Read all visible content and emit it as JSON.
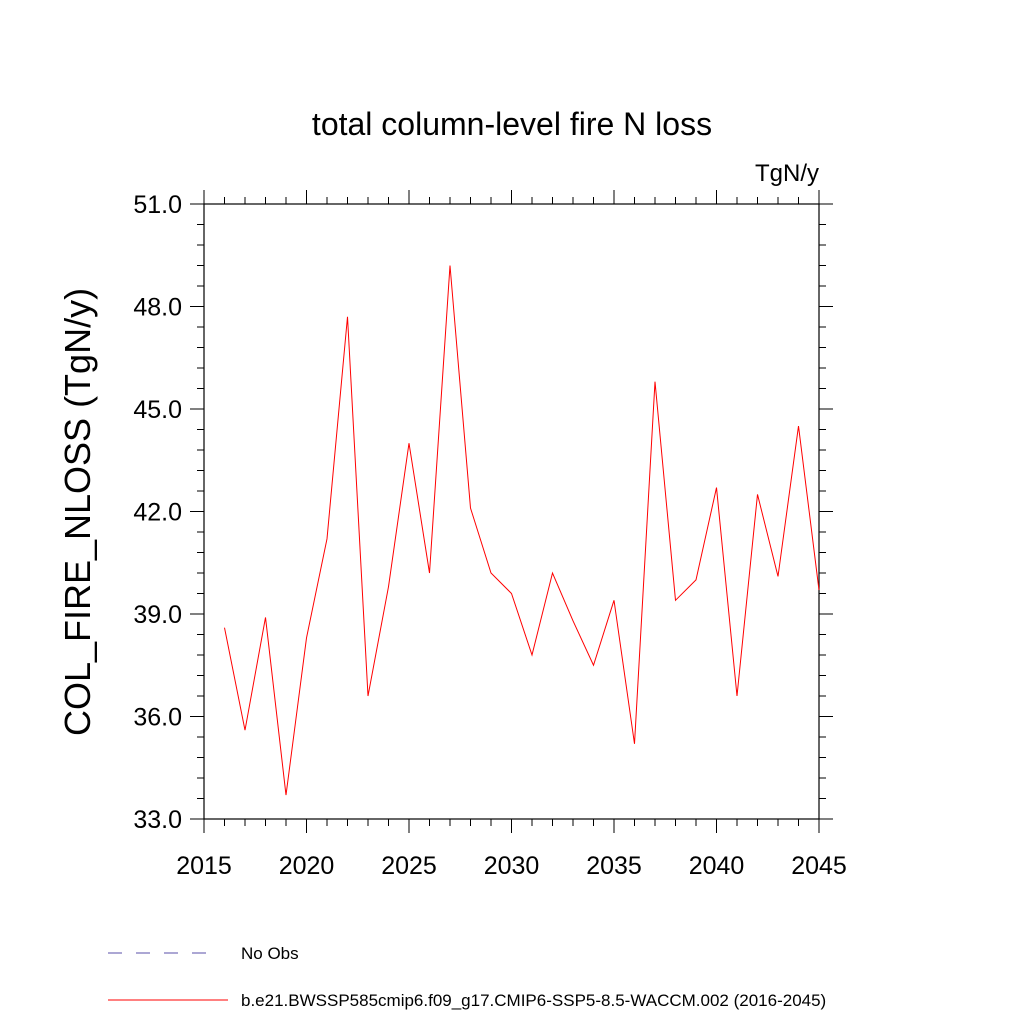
{
  "chart_data": {
    "type": "line",
    "title": "total column-level fire N loss",
    "units": "TgN/y",
    "xlabel": "",
    "ylabel": "COL_FIRE_NLOSS  (TgN/y)",
    "xlim": [
      2015,
      2045
    ],
    "ylim": [
      33.0,
      51.0
    ],
    "xticks": [
      2015,
      2020,
      2025,
      2030,
      2035,
      2040,
      2045
    ],
    "yticks": [
      "33.0",
      "36.0",
      "39.0",
      "42.0",
      "45.0",
      "48.0",
      "51.0"
    ],
    "series": [
      {
        "name": "b.e21.BWSSP585cmip6.f09_g17.CMIP6-SSP5-8.5-WACCM.002 (2016-2045)",
        "color": "#ff0000",
        "x": [
          2016,
          2017,
          2018,
          2019,
          2020,
          2021,
          2022,
          2023,
          2024,
          2025,
          2026,
          2027,
          2028,
          2029,
          2030,
          2031,
          2032,
          2033,
          2034,
          2035,
          2036,
          2037,
          2038,
          2039,
          2040,
          2041,
          2042,
          2043,
          2044,
          2045
        ],
        "values": [
          38.6,
          35.6,
          38.9,
          33.7,
          38.3,
          41.2,
          47.7,
          36.6,
          39.8,
          44.0,
          40.2,
          49.2,
          42.1,
          40.2,
          39.6,
          37.8,
          40.2,
          38.8,
          37.5,
          39.4,
          35.2,
          45.8,
          39.4,
          40.0,
          42.7,
          36.6,
          42.5,
          40.1,
          44.5,
          39.7
        ]
      }
    ],
    "legend": [
      {
        "label": "No Obs",
        "color": "#5a4fa8",
        "style": "dashed"
      },
      {
        "label": "b.e21.BWSSP585cmip6.f09_g17.CMIP6-SSP5-8.5-WACCM.002 (2016-2045)",
        "color": "#ff0000",
        "style": "solid"
      }
    ],
    "legend_position": "bottom",
    "grid": false
  }
}
